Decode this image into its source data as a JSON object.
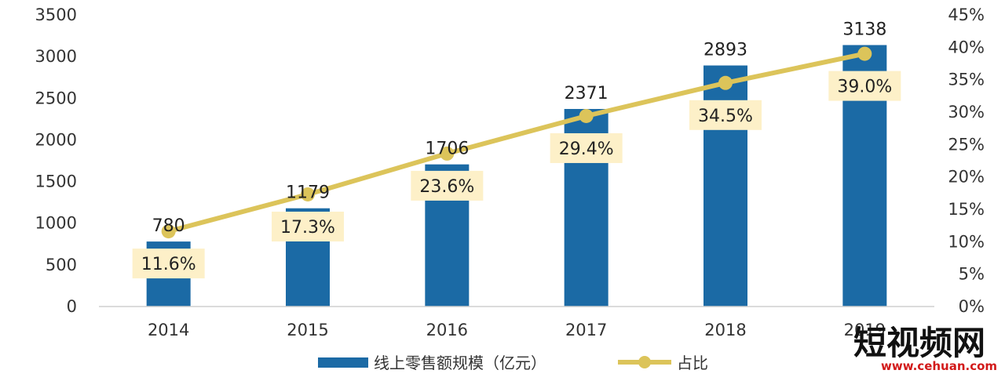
{
  "chart_data": {
    "type": "bar",
    "categories": [
      "2014",
      "2015",
      "2016",
      "2017",
      "2018",
      "2019"
    ],
    "series": [
      {
        "name": "线上零售额规模（亿元）",
        "type": "bar",
        "axis": "left",
        "color": "#1b6aa5",
        "values": [
          780,
          1179,
          1706,
          2371,
          2893,
          3138
        ],
        "labels": [
          "780",
          "1179",
          "1706",
          "2371",
          "2893",
          "3138"
        ]
      },
      {
        "name": "占比",
        "type": "line",
        "axis": "right",
        "color": "#dcc45a",
        "values": [
          11.6,
          17.3,
          23.6,
          29.4,
          34.5,
          39.0
        ],
        "labels": [
          "11.6%",
          "17.3%",
          "23.6%",
          "29.4%",
          "34.5%",
          "39.0%"
        ]
      }
    ],
    "y_left": {
      "ylim": [
        0,
        3500
      ],
      "ticks": [
        "0",
        "500",
        "1000",
        "1500",
        "2000",
        "2500",
        "3000",
        "3500"
      ]
    },
    "y_right": {
      "ylim": [
        0,
        45
      ],
      "ticks": [
        "0%",
        "5%",
        "10%",
        "15%",
        "20%",
        "25%",
        "30%",
        "35%",
        "40%",
        "45%"
      ]
    },
    "label_box_color": "#fdf0c8",
    "grid": false,
    "legend": "bottom"
  },
  "watermark": {
    "text": "短视频网",
    "url": "www.cehuan.com"
  }
}
